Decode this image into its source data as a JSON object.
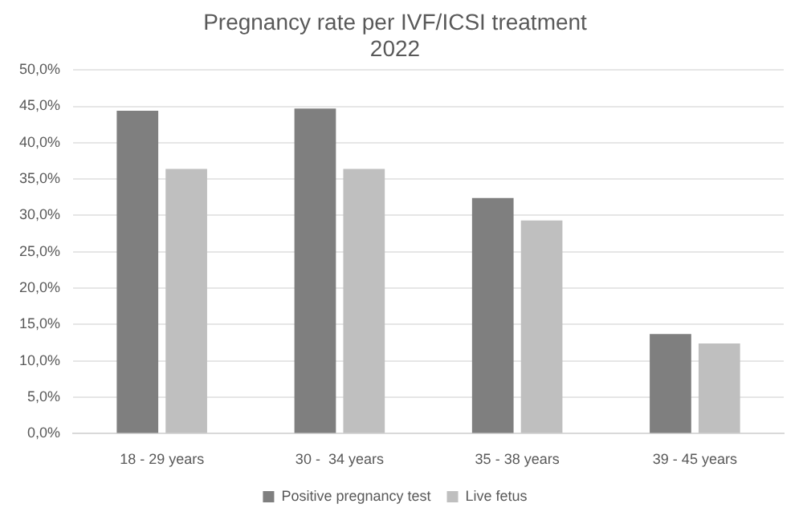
{
  "chart_data": {
    "type": "bar",
    "title": "Pregnancy rate per IVF/ICSI treatment",
    "subtitle": "2022",
    "categories": [
      "18 - 29 years",
      "30 -  34 years",
      "35 - 38 years",
      "39 - 45 years"
    ],
    "series": [
      {
        "name": "Positive pregnancy test",
        "color": "#7f7f7f",
        "values": [
          44.4,
          44.7,
          32.4,
          13.7
        ]
      },
      {
        "name": "Live fetus",
        "color": "#bfbfbf",
        "values": [
          36.4,
          36.4,
          29.3,
          12.4
        ]
      }
    ],
    "ylim": [
      0,
      50
    ],
    "yticks": [
      {
        "value": 0,
        "label": "0,0%"
      },
      {
        "value": 5,
        "label": "5,0%"
      },
      {
        "value": 10,
        "label": "10,0%"
      },
      {
        "value": 15,
        "label": "15,0%"
      },
      {
        "value": 20,
        "label": "20,0%"
      },
      {
        "value": 25,
        "label": "25,0%"
      },
      {
        "value": 30,
        "label": "30,0%"
      },
      {
        "value": 35,
        "label": "35,0%"
      },
      {
        "value": 40,
        "label": "40,0%"
      },
      {
        "value": 45,
        "label": "45,0%"
      },
      {
        "value": 50,
        "label": "50,0%"
      }
    ],
    "grid": "y",
    "legend": "bottom"
  }
}
